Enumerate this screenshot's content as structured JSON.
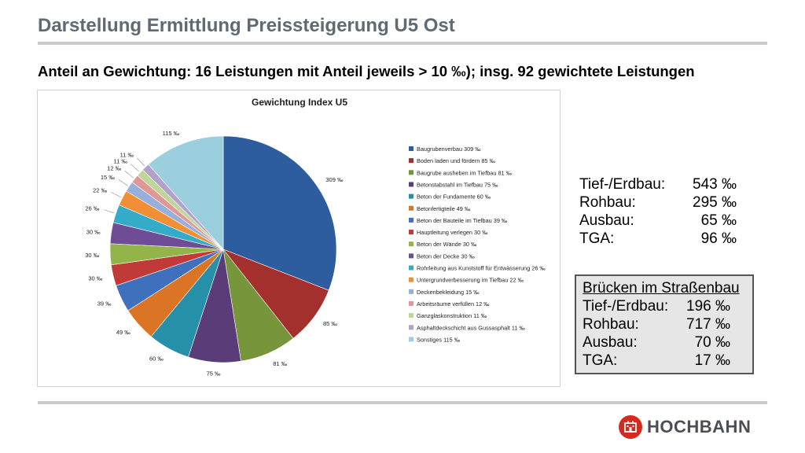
{
  "page": {
    "title": "Darstellung Ermittlung Preissteigerung U5 Ost",
    "subtitle": "Anteil an Gewichtung: 16 Leistungen mit Anteil jeweils > 10 ‰); insg. 92 gewichtete Leistungen"
  },
  "chart_data": {
    "type": "pie",
    "title": "Gewichtung Index U5",
    "unit": "‰",
    "legend_position": "right",
    "slices": [
      {
        "label": "Baugrubenverbau 309 ‰",
        "value": 309,
        "data_label": "309 ‰",
        "color": "#2e5d9f"
      },
      {
        "label": "Boden laden und fördern 85 ‰",
        "value": 85,
        "data_label": "85 ‰",
        "color": "#a4302e"
      },
      {
        "label": "Baugrube ausheben im Tiefbau 81 ‰",
        "value": 81,
        "data_label": "81 ‰",
        "color": "#77953a"
      },
      {
        "label": "Betonstabstahl im Tiefbau 75 ‰",
        "value": 75,
        "data_label": "75 ‰",
        "color": "#5a3d78"
      },
      {
        "label": "Beton der Fundamente 60 ‰",
        "value": 60,
        "data_label": "60 ‰",
        "color": "#2590a8"
      },
      {
        "label": "Betonfertigteile 49 ‰",
        "value": 49,
        "data_label": "49 ‰",
        "color": "#db7424"
      },
      {
        "label": "Beton der Bauteile im Tiefbau 39 ‰",
        "value": 39,
        "data_label": "39 ‰",
        "color": "#3f70be"
      },
      {
        "label": "Hauptleitung verlegen 30 ‰",
        "value": 30,
        "data_label": "30 ‰",
        "color": "#c23a37"
      },
      {
        "label": "Beton der Wände 30 ‰",
        "value": 30,
        "data_label": "30 ‰",
        "color": "#92b449"
      },
      {
        "label": "Beton der Decke 30 ‰",
        "value": 30,
        "data_label": "30 ‰",
        "color": "#6e4d96"
      },
      {
        "label": "Rohrleitung aus Kunststoff für Entwässerung 26 ‰",
        "value": 26,
        "data_label": "26 ‰",
        "color": "#34abc8"
      },
      {
        "label": "Untergrundverbesserung im Tiefbau 22 ‰",
        "value": 22,
        "data_label": "22 ‰",
        "color": "#f08f35"
      },
      {
        "label": "Deckenbekleidung 15 ‰",
        "value": 15,
        "data_label": "15 ‰",
        "color": "#98aedb"
      },
      {
        "label": "Arbeitsräume verfüllen 12 ‰",
        "value": 12,
        "data_label": "12 ‰",
        "color": "#df9896"
      },
      {
        "label": "Ganzglaskonstruktion 11 ‰",
        "value": 11,
        "data_label": "11 ‰",
        "color": "#bfd69b"
      },
      {
        "label": "Asphaltdeckschicht aus Gussasphalt 11 ‰",
        "value": 11,
        "data_label": "11 ‰",
        "color": "#b1a2cb"
      },
      {
        "label": "Sonstiges 115 ‰",
        "value": 115,
        "data_label": "115 ‰",
        "color": "#9ccfde"
      }
    ]
  },
  "summary": {
    "rows": [
      {
        "label": "Tief-/Erdbau:",
        "value": "543 ‰"
      },
      {
        "label": "Rohbau:",
        "value": "295 ‰"
      },
      {
        "label": "Ausbau:",
        "value": "65 ‰"
      },
      {
        "label": "TGA:",
        "value": "96 ‰"
      }
    ]
  },
  "bridges": {
    "title": "Brücken im Straßenbau",
    "rows": [
      {
        "label": "Tief-/Erdbau:",
        "value": "196 ‰"
      },
      {
        "label": "Rohbau:",
        "value": "717 ‰"
      },
      {
        "label": "Ausbau:",
        "value": "70 ‰"
      },
      {
        "label": "TGA:",
        "value": "17 ‰"
      }
    ]
  },
  "logo": {
    "text": "HOCHBAHN",
    "mark_color": "#d52b1e",
    "icon": "hochbahn-logo-icon"
  }
}
